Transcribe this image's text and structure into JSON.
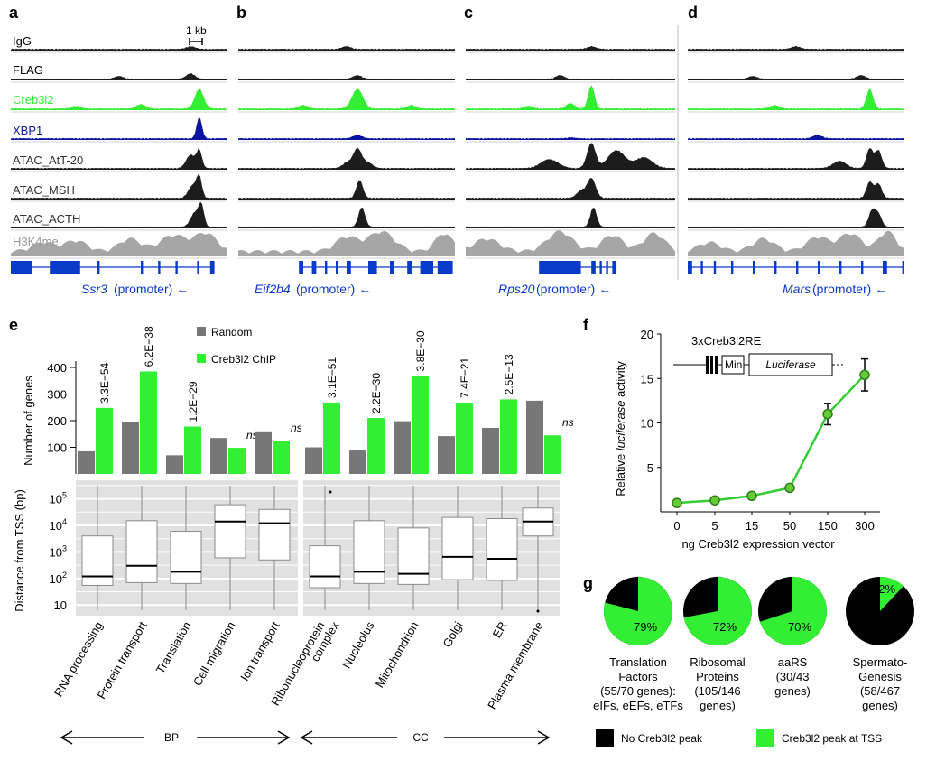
{
  "colors": {
    "green": "#33ee33",
    "green_dark": "#2da02d",
    "gray_bar": "#777777",
    "blue_track": "#0a14a0",
    "gene_blue": "#0a3ac8",
    "h3k4_gray": "#a6a6a6",
    "dark_track": "#1c1c1c",
    "box_bg": "#e1e1e1"
  },
  "browser": {
    "scale_label": "1 kb",
    "tracks": [
      {
        "name": "IgG",
        "color": "#1c1c1c"
      },
      {
        "name": "FLAG",
        "color": "#1c1c1c"
      },
      {
        "name": "Creb3l2",
        "color": "#33ee33"
      },
      {
        "name": "XBP1",
        "color": "#0a14a0"
      },
      {
        "name": "ATAC_AtT-20",
        "color": "#1c1c1c"
      },
      {
        "name": "ATAC_MSH",
        "color": "#1c1c1c"
      },
      {
        "name": "ATAC_ACTH",
        "color": "#1c1c1c"
      },
      {
        "name": "H3K4me",
        "color": "#a6a6a6"
      }
    ],
    "panels": [
      {
        "letter": "a",
        "gene": "Ssr3",
        "suffix": " (promoter) ←"
      },
      {
        "letter": "b",
        "gene": "Eif2b4",
        "suffix": " (promoter) ←"
      },
      {
        "letter": "c",
        "gene": "Rps20",
        "suffix": " (promoter) ←"
      },
      {
        "letter": "d",
        "gene": "Mars",
        "suffix": " (promoter) ←"
      }
    ]
  },
  "chart_data": [
    {
      "panel": "e",
      "type": "bar",
      "ylabel": "Number of genes",
      "yticks": [
        100,
        200,
        300,
        400
      ],
      "ylim": [
        0,
        420
      ],
      "legend": [
        "Random",
        "Creb3l2 ChIP"
      ],
      "groups": [
        {
          "name": "BP",
          "categories": [
            "RNA processing",
            "Protein transport",
            "Translation",
            "Cell migration",
            "Ion transport"
          ],
          "series": [
            {
              "name": "Random",
              "values": [
                85,
                195,
                70,
                135,
                160
              ]
            },
            {
              "name": "Creb3l2 ChIP",
              "values": [
                248,
                385,
                178,
                98,
                125
              ]
            }
          ],
          "pvalues": [
            "3.3E−54",
            "6.2E−38",
            "1.2E−29",
            "ns",
            "ns"
          ]
        },
        {
          "name": "CC",
          "categories": [
            "Ribonucleoprotein complex",
            "Nucleolus",
            "Mitochondrion",
            "Golgi",
            "ER",
            "Plasma membrane"
          ],
          "series": [
            {
              "name": "Random",
              "values": [
                100,
                88,
                198,
                142,
                173,
                275
              ]
            },
            {
              "name": "Creb3l2 ChIP",
              "values": [
                268,
                210,
                368,
                268,
                280,
                145
              ]
            }
          ],
          "pvalues": [
            "3.1E−51",
            "2.2E−30",
            "3.8E−30",
            "7.4E−21",
            "2.5E−13",
            "ns"
          ]
        }
      ]
    },
    {
      "panel": "e-box",
      "type": "box",
      "ylabel": "Distance from TSS (bp)",
      "ytick_labels": [
        "10",
        "10^2",
        "10^3",
        "10^4",
        "10^5"
      ],
      "log_scale": true,
      "boxes": [
        {
          "cat": "RNA processing",
          "q1": 55,
          "med": 120,
          "q3": 4000
        },
        {
          "cat": "Protein transport",
          "q1": 70,
          "med": 300,
          "q3": 15000
        },
        {
          "cat": "Translation",
          "q1": 65,
          "med": 180,
          "q3": 6000
        },
        {
          "cat": "Cell migration",
          "q1": 600,
          "med": 14000,
          "q3": 60000
        },
        {
          "cat": "Ion transport",
          "q1": 500,
          "med": 12000,
          "q3": 40000
        },
        {
          "cat": "Ribonucleoprotein complex",
          "q1": 45,
          "med": 120,
          "q3": 1700
        },
        {
          "cat": "Nucleolus",
          "q1": 65,
          "med": 180,
          "q3": 15000
        },
        {
          "cat": "Mitochondrion",
          "q1": 60,
          "med": 150,
          "q3": 8000
        },
        {
          "cat": "Golgi",
          "q1": 90,
          "med": 650,
          "q3": 20000
        },
        {
          "cat": "ER",
          "q1": 85,
          "med": 550,
          "q3": 18000
        },
        {
          "cat": "Plasma membrane",
          "q1": 4000,
          "med": 14000,
          "q3": 45000
        }
      ],
      "group_labels": [
        "BP",
        "CC"
      ]
    },
    {
      "panel": "f",
      "type": "line",
      "xlabel": "ng Creb3l2 expression vector",
      "ylabel_pre": "Relative ",
      "ylabel_it": "luciferase",
      "ylabel_post": " activity",
      "x": [
        "0",
        "5",
        "15",
        "50",
        "150",
        "300"
      ],
      "y": [
        1.0,
        1.3,
        1.8,
        2.7,
        11.0,
        15.4
      ],
      "err": [
        0,
        0,
        0,
        0,
        1.2,
        1.8
      ],
      "yticks": [
        5,
        10,
        15,
        20
      ],
      "ylim": [
        0,
        20
      ],
      "construct": {
        "title": "3xCreb3l2RE",
        "min": "Min.",
        "luc": "Luciferase"
      }
    },
    {
      "panel": "g",
      "type": "pie",
      "pies": [
        {
          "pct": 79,
          "label": "79%",
          "caption": [
            "Translation",
            "Factors",
            "(55/70 genes):",
            "eIFs, eEFs, eTFs"
          ]
        },
        {
          "pct": 72,
          "label": "72%",
          "caption": [
            "Ribosomal",
            "Proteins",
            "(105/146",
            "genes)"
          ]
        },
        {
          "pct": 70,
          "label": "70%",
          "caption": [
            "aaRS",
            "(30/43",
            "genes)"
          ]
        },
        {
          "pct": 12,
          "label": "12%",
          "caption": [
            "Spermato-",
            "Genesis",
            "(58/467",
            "genes)"
          ]
        }
      ],
      "legend": [
        "No Creb3l2 peak",
        "Creb3l2 peak at TSS"
      ]
    }
  ]
}
